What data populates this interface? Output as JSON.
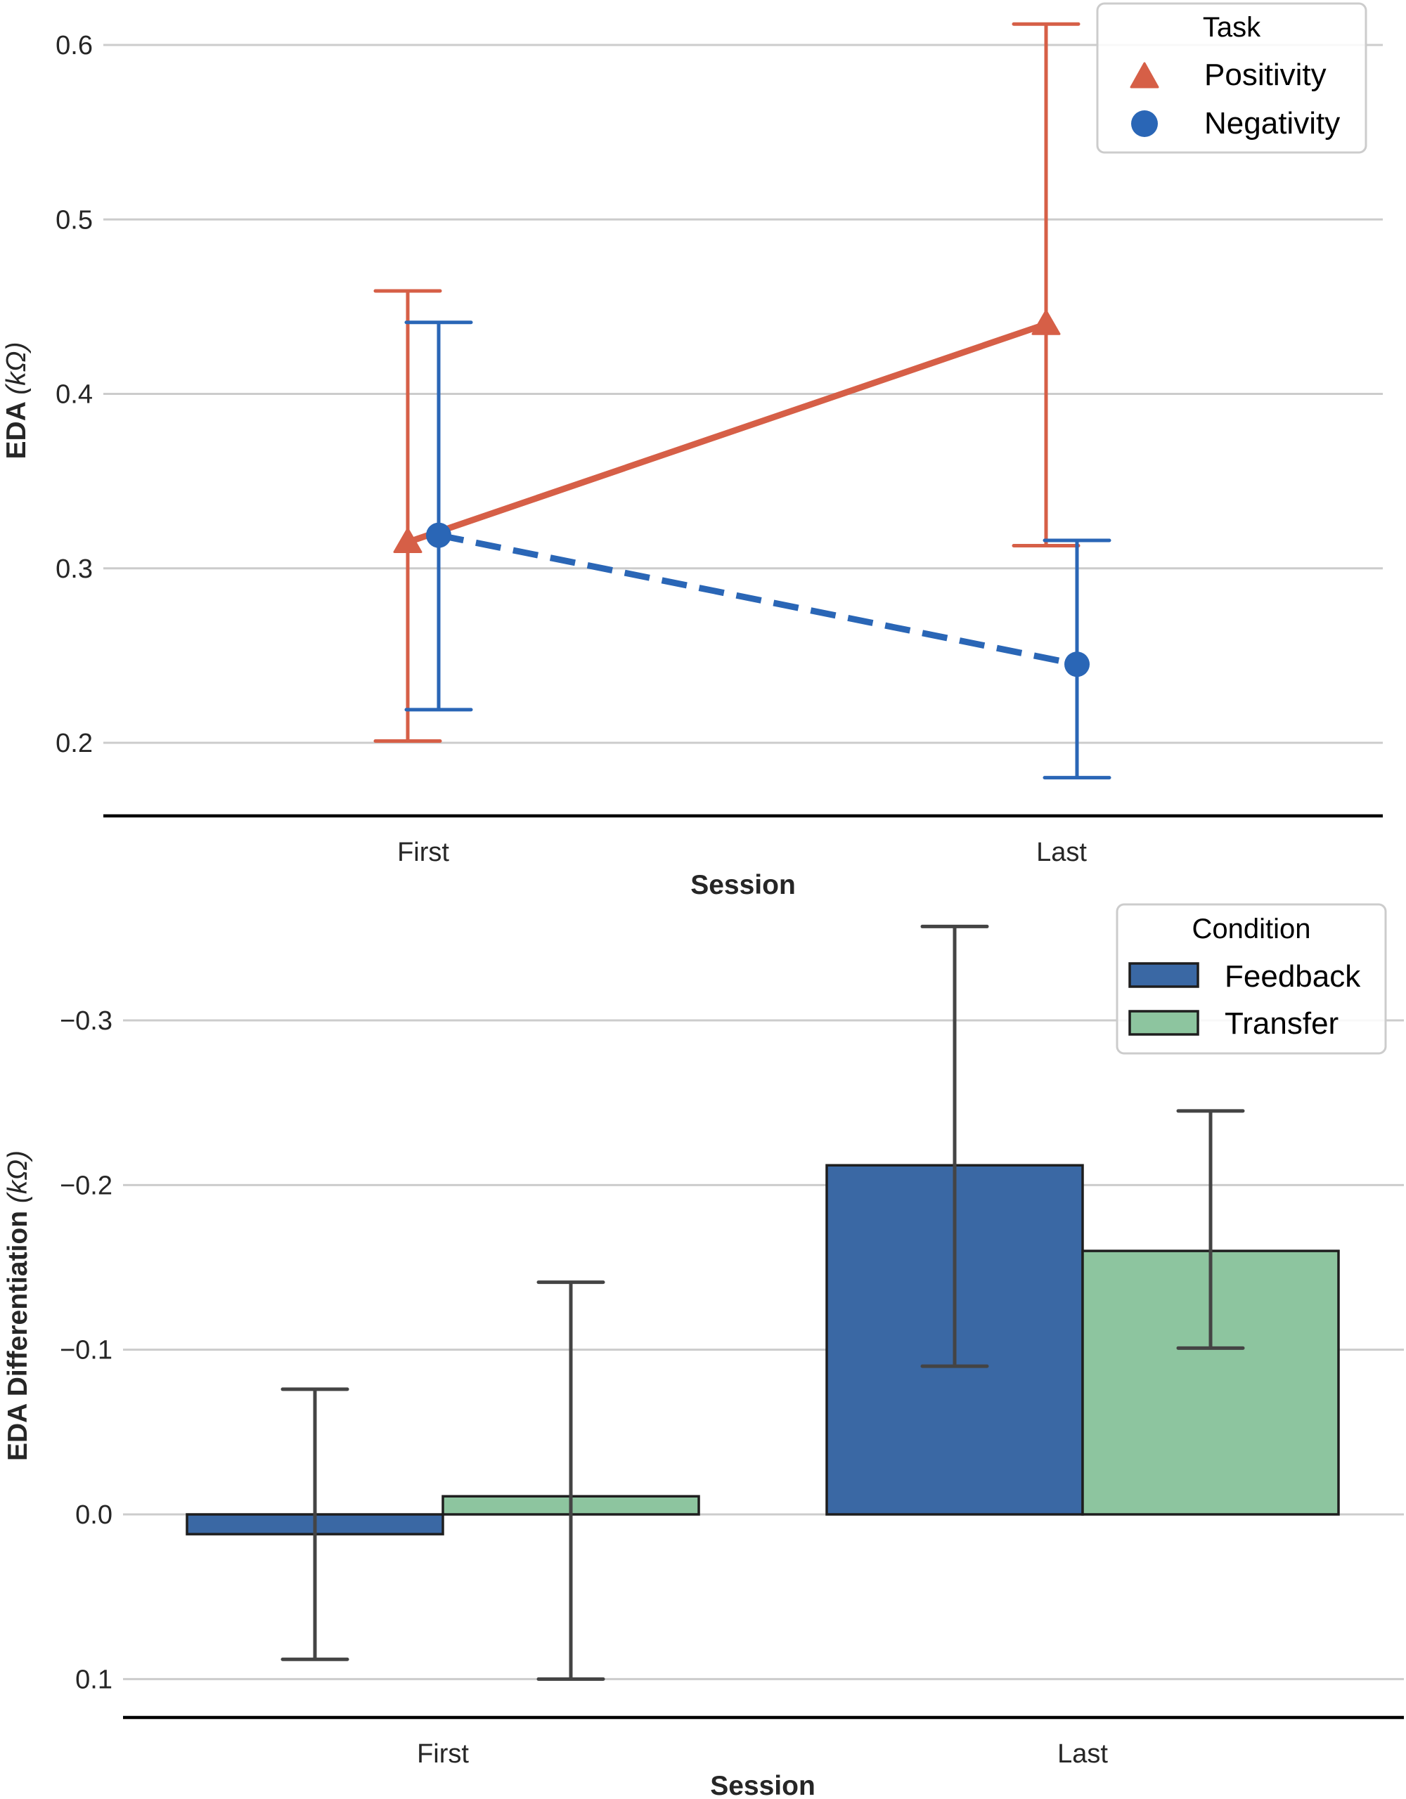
{
  "chart_data": [
    {
      "type": "line",
      "title": "",
      "xlabel": "Session",
      "ylabel": "EDA (kΩ)",
      "ylabel_main": "EDA",
      "ylabel_unit": "(kΩ)",
      "categories": [
        "First",
        "Last"
      ],
      "ylim": [
        0.158,
        0.615
      ],
      "yticks": [
        0.2,
        0.3,
        0.4,
        0.5,
        0.6
      ],
      "ytick_labels": [
        "0.2",
        "0.3",
        "0.4",
        "0.5",
        "0.6"
      ],
      "grid": true,
      "legend": {
        "title": "Task",
        "placement": "top-right"
      },
      "series": [
        {
          "name": "Positivity",
          "marker": "triangle",
          "linestyle": "solid",
          "color": "#d65f47",
          "values": [
            0.315,
            0.44
          ],
          "ci_low": [
            0.201,
            0.313
          ],
          "ci_high": [
            0.459,
            0.612
          ]
        },
        {
          "name": "Negativity",
          "marker": "circle",
          "linestyle": "dashed",
          "color": "#2a66b6",
          "values": [
            0.319,
            0.245
          ],
          "ci_low": [
            0.219,
            0.18
          ],
          "ci_high": [
            0.441,
            0.316
          ]
        }
      ]
    },
    {
      "type": "bar",
      "title": "",
      "xlabel": "Session",
      "ylabel": "EDA Differentiation (kΩ)",
      "ylabel_main": "EDA Differentiation",
      "ylabel_unit": "(kΩ)",
      "categories": [
        "First",
        "Last"
      ],
      "y_inverted": true,
      "ylim": [
        0.123,
        -0.365
      ],
      "yticks": [
        -0.3,
        -0.2,
        -0.1,
        0.0,
        0.1
      ],
      "ytick_labels": [
        "−0.3",
        "−0.2",
        "−0.1",
        "0.0",
        "0.1"
      ],
      "grid": true,
      "legend": {
        "title": "Condition",
        "placement": "top-right"
      },
      "series": [
        {
          "name": "Feedback",
          "color": "#3a68a4",
          "values": [
            0.012,
            -0.212
          ],
          "ci_low": [
            0.088,
            -0.09
          ],
          "ci_high": [
            -0.076,
            -0.357
          ]
        },
        {
          "name": "Transfer",
          "color": "#8dc59f",
          "values": [
            -0.011,
            -0.16
          ],
          "ci_low": [
            0.1,
            -0.101
          ],
          "ci_high": [
            -0.141,
            -0.245
          ]
        }
      ]
    }
  ]
}
